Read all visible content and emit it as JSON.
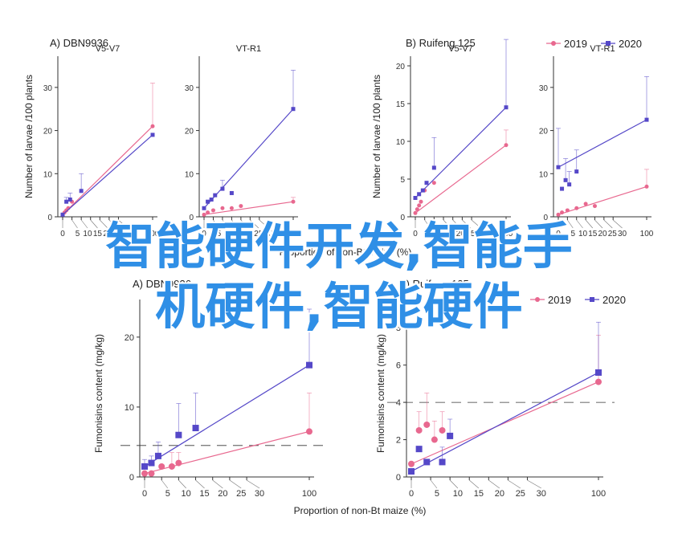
{
  "overlay_text": {
    "line1": "智能硬件开发,智能手",
    "line2": "机硬件,智能硬件"
  },
  "colors": {
    "series_2019": "#e8688f",
    "series_2020": "#5548c8",
    "axis": "#333333"
  },
  "legend": [
    {
      "name": "2019",
      "marker": "circle"
    },
    {
      "name": "2020",
      "marker": "square"
    }
  ],
  "chart_data": [
    {
      "type": "scatter",
      "panel": "A) DBN9936",
      "title": "V5-V7",
      "ylabel": "Number of larvae /100 plants",
      "ylim": [
        0,
        35
      ],
      "yticks": [
        0,
        10,
        20,
        30
      ],
      "xticks": [
        0,
        5,
        10,
        15,
        20,
        25,
        30,
        100
      ],
      "series": [
        {
          "name": "2019",
          "x": [
            0,
            1,
            2,
            3,
            5,
            100
          ],
          "y": [
            0.5,
            1,
            1.5,
            2,
            3.5,
            21
          ],
          "err": [
            0,
            0,
            0,
            0,
            0,
            10
          ]
        },
        {
          "name": "2020",
          "x": [
            0,
            2,
            4,
            10,
            100
          ],
          "y": [
            0.5,
            3.5,
            4,
            6,
            19
          ],
          "err": [
            0,
            1,
            1.5,
            4,
            0
          ]
        }
      ]
    },
    {
      "type": "scatter",
      "panel": "A) DBN9936",
      "title": "VT-R1",
      "ylim": [
        0,
        35
      ],
      "yticks": [
        0,
        10,
        20,
        30
      ],
      "xticks": [
        0,
        5,
        10,
        15,
        20,
        25,
        30,
        100
      ],
      "series": [
        {
          "name": "2019",
          "x": [
            0,
            2,
            5,
            10,
            15,
            20,
            100
          ],
          "y": [
            0.5,
            1,
            1.5,
            2,
            2,
            2.5,
            3.5
          ],
          "err": [
            0,
            0,
            0,
            0,
            0,
            0,
            1
          ]
        },
        {
          "name": "2020",
          "x": [
            0,
            2,
            4,
            6,
            10,
            15,
            100
          ],
          "y": [
            2,
            3.5,
            4,
            5,
            6.5,
            5.5,
            25
          ],
          "err": [
            0,
            0,
            0,
            0,
            2,
            0,
            9
          ]
        }
      ]
    },
    {
      "type": "scatter",
      "panel": "B) Ruifeng 125",
      "title": "V5-V7",
      "ylabel": "Number of larvae /100 plants",
      "ylim": [
        0,
        20
      ],
      "yticks": [
        0,
        5,
        10,
        15,
        20
      ],
      "xticks": [
        0,
        5,
        10,
        15,
        20,
        25,
        30,
        100
      ],
      "series": [
        {
          "name": "2019",
          "x": [
            0,
            1,
            2,
            3,
            5,
            10,
            100
          ],
          "y": [
            0.5,
            1,
            1.5,
            2,
            3.5,
            4.5,
            9.5
          ],
          "err": [
            0,
            0,
            0,
            0,
            0,
            0,
            2
          ]
        },
        {
          "name": "2020",
          "x": [
            0,
            2,
            4,
            6,
            10,
            100
          ],
          "y": [
            2.5,
            3,
            3.5,
            4.5,
            6.5,
            14.5
          ],
          "err": [
            0,
            0,
            0,
            0,
            4,
            9
          ]
        }
      ]
    },
    {
      "type": "scatter",
      "panel": "B) Ruifeng 125",
      "title": "VT-R1",
      "ylim": [
        0,
        35
      ],
      "yticks": [
        0,
        10,
        20,
        30
      ],
      "xticks": [
        0,
        5,
        10,
        15,
        20,
        25,
        30,
        100
      ],
      "series": [
        {
          "name": "2019",
          "x": [
            0,
            2,
            5,
            10,
            15,
            20,
            100
          ],
          "y": [
            0.5,
            1,
            1.5,
            2,
            3,
            2.5,
            7
          ],
          "err": [
            0,
            0,
            0,
            0,
            0,
            0,
            4
          ]
        },
        {
          "name": "2020",
          "x": [
            0,
            2,
            4,
            6,
            10,
            100
          ],
          "y": [
            11.5,
            6.5,
            8.5,
            7.5,
            10.5,
            22.5
          ],
          "err": [
            9,
            0,
            5,
            3,
            5,
            10
          ]
        }
      ]
    },
    {
      "type": "scatter",
      "panel": "A) DBN9936",
      "xlabel": "Proportion of non-Bt maize (%)",
      "ylabel": "Fumonisins content (mg/kg)",
      "ylim": [
        0,
        24
      ],
      "yticks": [
        0,
        10,
        20
      ],
      "xticks": [
        0,
        5,
        10,
        15,
        20,
        25,
        30,
        100
      ],
      "threshold": 4.5,
      "series": [
        {
          "name": "2019",
          "x": [
            0,
            2,
            5,
            8,
            10,
            100
          ],
          "y": [
            0.5,
            0.5,
            1.5,
            1.5,
            2,
            6.5
          ],
          "err": [
            0,
            0,
            0,
            2,
            1.5,
            5.5
          ]
        },
        {
          "name": "2020",
          "x": [
            0,
            2,
            4,
            10,
            15,
            100
          ],
          "y": [
            1.5,
            2,
            3,
            6,
            7,
            16
          ],
          "err": [
            1,
            1,
            2,
            4.5,
            5,
            8
          ]
        }
      ]
    },
    {
      "type": "scatter",
      "panel": "B) Ruifeng 125",
      "xlabel": "Proportion of non-Bt maize (%)",
      "ylim": [
        0,
        9
      ],
      "yticks": [
        0,
        2,
        4,
        6,
        8
      ],
      "xticks": [
        0,
        5,
        10,
        15,
        20,
        25,
        30,
        100
      ],
      "threshold": 4,
      "series": [
        {
          "name": "2019",
          "x": [
            0,
            2,
            4,
            6,
            8,
            100
          ],
          "y": [
            0.7,
            2.5,
            2.8,
            2,
            2.5,
            5.1
          ],
          "err": [
            0,
            1,
            1.7,
            1,
            1,
            2.5
          ]
        },
        {
          "name": "2020",
          "x": [
            0,
            2,
            4,
            8,
            10,
            100
          ],
          "y": [
            0.3,
            1.5,
            0.8,
            0.8,
            2.2,
            5.6
          ],
          "err": [
            0,
            0,
            0,
            0.8,
            0.9,
            2.7
          ]
        }
      ]
    }
  ],
  "labels": {
    "panel_a_top": "A)  DBN9936",
    "panel_b_top": "B)  Ruifeng 125",
    "panel_a_bottom": "A) DBN9936",
    "panel_b_bottom": "B) Ruifeng 125",
    "top_xlabel": "Proportion of non-Bt maize (%)",
    "bottom_xlabel": "Proportion of non-Bt maize (%)",
    "ylabel_top": "Number of larvae /100 plants",
    "ylabel_bottom": "Fumonisins content (mg/kg)",
    "ylabel_bottom_visible_b": "Fumonisins content (mg/kg)"
  }
}
